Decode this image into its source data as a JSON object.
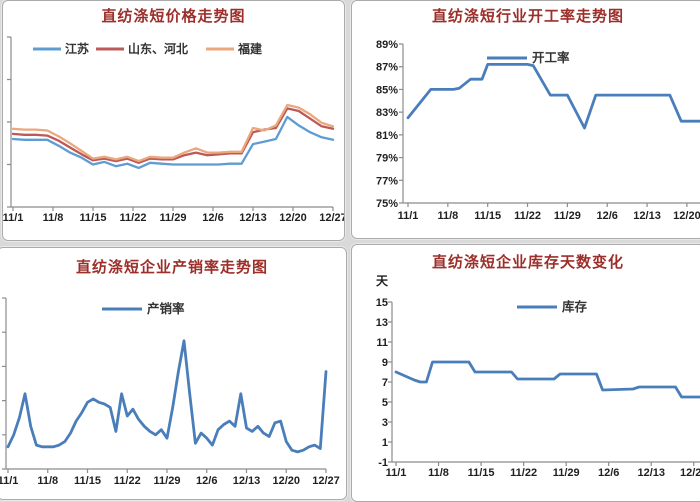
{
  "page": {
    "background_color": "#d9d9d9",
    "panel_background": "#ffffff",
    "title_color": "#9c2f2a",
    "axis_color": "#8c8c8c",
    "tick_label_color": "#1f1f1f",
    "legend_text_color": "#333333"
  },
  "chart_data": [
    {
      "id": "price-trend",
      "type": "line",
      "title": "直纺涤短价格走势图",
      "x_tick_labels": [
        "11/1",
        "11/8",
        "11/15",
        "11/22",
        "11/29",
        "12/6",
        "12/13",
        "12/20",
        "12/27"
      ],
      "x_tick_days": [
        0,
        7,
        14,
        21,
        28,
        35,
        42,
        49,
        56
      ],
      "x_domain_days": [
        0,
        56
      ],
      "x_step_days": 2,
      "y_axis": {
        "ylim": [
          0,
          100
        ],
        "labels_visible": false,
        "tick_count": 5,
        "note": "y-axis tick labels cropped out of frame; values are relative price index estimates"
      },
      "legend": [
        {
          "label": "江苏",
          "color": "#5E9CD3"
        },
        {
          "label": "山东、河北",
          "color": "#BC5A58"
        },
        {
          "label": "福建",
          "color": "#EBA77D"
        }
      ],
      "series": [
        {
          "name": "江苏",
          "color": "#5E9CD3",
          "values": [
            40,
            39.5,
            39.5,
            39.5,
            36,
            32,
            29,
            25,
            26.5,
            24,
            25.5,
            23,
            26,
            25.5,
            25,
            25,
            25,
            25,
            25,
            25.5,
            25.5,
            37,
            38.5,
            40,
            53,
            48,
            44,
            41,
            39.5
          ]
        },
        {
          "name": "山东、河北",
          "color": "#BC5A58",
          "values": [
            43,
            42.5,
            42.5,
            42,
            39,
            35,
            31,
            27.5,
            28.5,
            27,
            28.5,
            26,
            28.5,
            28,
            28,
            30.5,
            32,
            30.5,
            31,
            31.5,
            31.5,
            44,
            45.5,
            46.5,
            58,
            56.5,
            52,
            47.5,
            46
          ]
        },
        {
          "name": "福建",
          "color": "#EBA77D",
          "values": [
            46,
            45.5,
            45.5,
            45,
            41.5,
            37.5,
            33,
            28.5,
            29.5,
            28,
            29.5,
            27,
            29.5,
            29,
            29,
            32,
            34.5,
            32,
            32,
            32.5,
            32.5,
            46.5,
            45,
            48,
            60,
            58.5,
            54.5,
            49.5,
            47.5
          ]
        }
      ]
    },
    {
      "id": "operating-rate",
      "type": "line",
      "title": "直纺涤短行业开工率走势图",
      "x_tick_labels": [
        "11/1",
        "11/8",
        "11/15",
        "11/22",
        "11/29",
        "12/6",
        "12/13",
        "12/20"
      ],
      "x_tick_days": [
        0,
        7,
        14,
        21,
        28,
        35,
        42,
        49
      ],
      "x_domain_days": [
        0,
        52
      ],
      "y_axis": {
        "ylim": [
          75,
          89
        ],
        "labels_visible": true,
        "tick_labels_top_to_bottom": [
          "89%",
          "87%",
          "85%",
          "83%",
          "81%",
          "79%",
          "77%",
          "75%"
        ]
      },
      "legend": [
        {
          "label": "开工率",
          "color": "#4A7EBB"
        }
      ],
      "series": [
        {
          "name": "开工率",
          "color": "#4A7EBB",
          "points": [
            [
              0,
              82.5
            ],
            [
              4,
              85
            ],
            [
              8,
              85
            ],
            [
              9,
              85.1
            ],
            [
              11,
              85.9
            ],
            [
              13,
              85.9
            ],
            [
              14,
              87.2
            ],
            [
              21,
              87.2
            ],
            [
              22,
              87.1
            ],
            [
              25,
              84.5
            ],
            [
              28,
              84.5
            ],
            [
              31,
              81.6
            ],
            [
              33,
              84.5
            ],
            [
              46,
              84.5
            ],
            [
              48,
              82.2
            ],
            [
              52,
              82.2
            ]
          ]
        }
      ]
    },
    {
      "id": "sales-rate",
      "type": "line",
      "title": "直纺涤短企业产销率走势图",
      "x_tick_labels": [
        "11/1",
        "11/8",
        "11/15",
        "11/22",
        "11/29",
        "12/6",
        "12/13",
        "12/20",
        "12/27"
      ],
      "x_tick_days": [
        0,
        7,
        14,
        21,
        28,
        35,
        42,
        49,
        56
      ],
      "x_domain_days": [
        0,
        56
      ],
      "x_step_days": 1,
      "y_axis": {
        "ylim": [
          0,
          100
        ],
        "labels_visible": false,
        "tick_count": 6,
        "note": "y-axis tick labels cropped out of frame; values are relative production-sales rate estimates"
      },
      "legend": [
        {
          "label": "产销率",
          "color": "#4A7EBB"
        }
      ],
      "series": [
        {
          "name": "产销率",
          "color": "#4A7EBB",
          "values": [
            13,
            20,
            30,
            44,
            25,
            14,
            13,
            13,
            13,
            14,
            16,
            21,
            28,
            33,
            39,
            41,
            39,
            38,
            36,
            22,
            44,
            31,
            35,
            29,
            25,
            22,
            20,
            23,
            18,
            36,
            57,
            75,
            44,
            15,
            21,
            18,
            14,
            23,
            26,
            28,
            25,
            44,
            24,
            22,
            25,
            21,
            19,
            27,
            28,
            16,
            11,
            10,
            11,
            13,
            14,
            12,
            57
          ]
        }
      ]
    },
    {
      "id": "inventory-days",
      "type": "line",
      "title": "直纺涤短企业库存天数变化",
      "x_tick_labels": [
        "11/1",
        "11/8",
        "11/15",
        "11/22",
        "11/29",
        "12/6",
        "12/13",
        "12/20"
      ],
      "x_tick_days": [
        0,
        7,
        14,
        21,
        28,
        35,
        42,
        49
      ],
      "x_domain_days": [
        0,
        52
      ],
      "y_axis": {
        "ylim": [
          -1,
          15
        ],
        "labels_visible": true,
        "unit": "天",
        "tick_labels_top_to_bottom": [
          "15",
          "13",
          "11",
          "9",
          "7",
          "5",
          "3",
          "1",
          "-1"
        ]
      },
      "legend": [
        {
          "label": "库存",
          "color": "#4A7EBB"
        }
      ],
      "series": [
        {
          "name": "库存",
          "color": "#4A7EBB",
          "points": [
            [
              0,
              8
            ],
            [
              3,
              7.2
            ],
            [
              4,
              7
            ],
            [
              5,
              7
            ],
            [
              6,
              9
            ],
            [
              12,
              9
            ],
            [
              13,
              8
            ],
            [
              19,
              8
            ],
            [
              20,
              7.3
            ],
            [
              26,
              7.3
            ],
            [
              27,
              7.8
            ],
            [
              33,
              7.8
            ],
            [
              34,
              6.2
            ],
            [
              39,
              6.3
            ],
            [
              40,
              6.5
            ],
            [
              46,
              6.5
            ],
            [
              47,
              5.5
            ],
            [
              52,
              5.5
            ]
          ]
        }
      ]
    }
  ]
}
